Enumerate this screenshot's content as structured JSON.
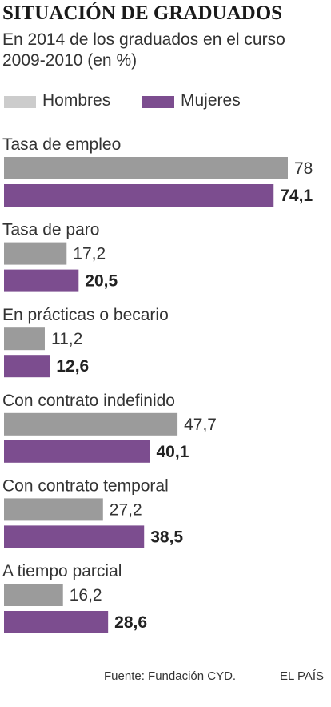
{
  "header": {
    "title": "SITUACIÓN DE GRADUADOS",
    "subtitle_line1": "En 2014 de los graduados en el curso",
    "subtitle_line2": "2009-2010  (en %)"
  },
  "legend": {
    "men_label": "Hombres",
    "women_label": "Mujeres"
  },
  "footer": {
    "source": "Fuente: Fundación CYD.",
    "brand": "EL PAÍS"
  },
  "colors": {
    "men": "#9b9b9b",
    "women": "#7c4d8f",
    "legend_men": "#cccccc",
    "legend_women": "#7c4d8f"
  },
  "chart_data": {
    "type": "bar",
    "orientation": "horizontal",
    "xlim": [
      0,
      78
    ],
    "categories": [
      "Tasa de empleo",
      "Tasa de paro",
      "En prácticas o becario",
      "Con contrato indefinido",
      "Con contrato temporal",
      "A tiempo parcial"
    ],
    "series": [
      {
        "name": "Hombres",
        "values": [
          78,
          17.2,
          11.2,
          47.7,
          27.2,
          16.2
        ],
        "labels": [
          "78",
          "17,2",
          "11,2",
          "47,7",
          "27,2",
          "16,2"
        ]
      },
      {
        "name": "Mujeres",
        "values": [
          74.1,
          20.5,
          12.6,
          40.1,
          38.5,
          28.6
        ],
        "labels": [
          "74,1",
          "20,5",
          "12,6",
          "40,1",
          "38,5",
          "28,6"
        ]
      }
    ]
  }
}
